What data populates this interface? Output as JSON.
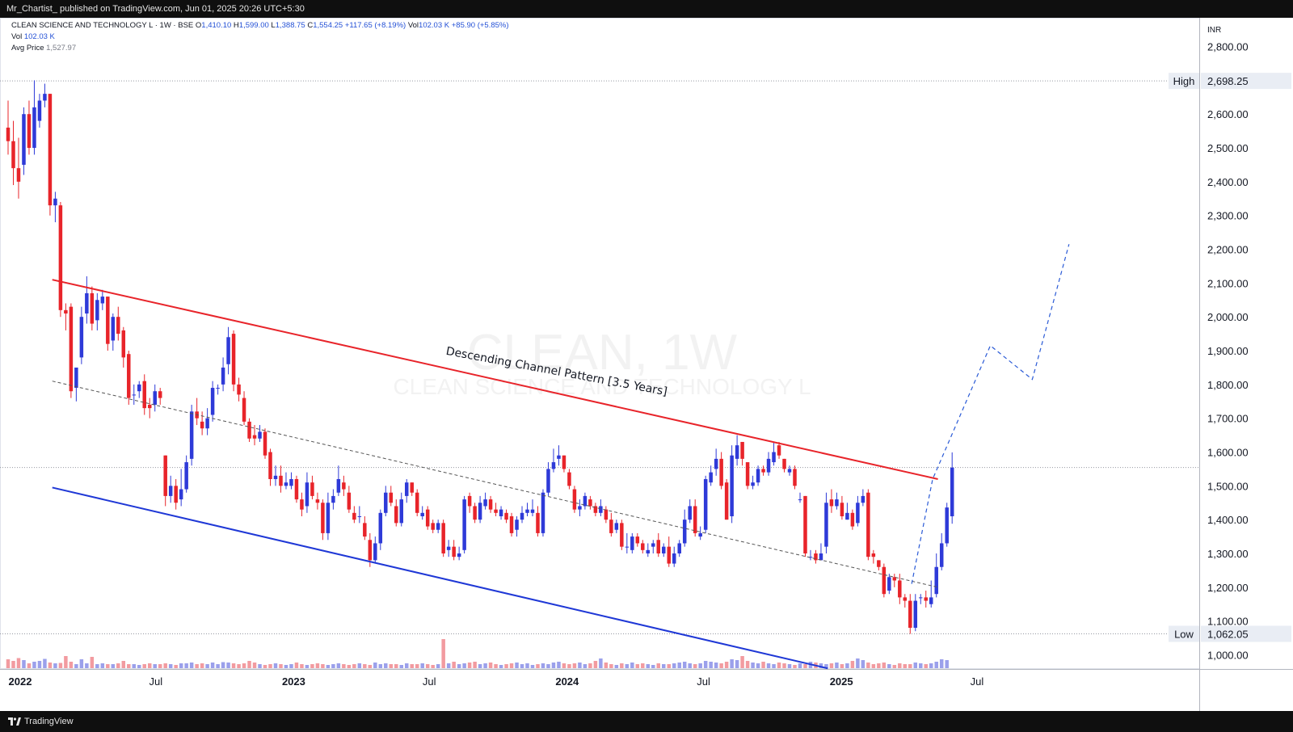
{
  "header": {
    "publish_text": "Mr_Chartist_ published on TradingView.com, Jun 01, 2025 20:26 UTC+5:30"
  },
  "legend": {
    "symbol": "CLEAN SCIENCE AND TECHNOLOGY L · 1W · BSE",
    "open_label": "O",
    "open": "1,410.10",
    "high_label": "H",
    "high": "1,599.00",
    "low_label": "L",
    "low": "1,388.75",
    "close_label": "C",
    "close": "1,554.25",
    "change": "+117.65 (+8.19%)",
    "vol_label": "Vol",
    "vol": "102.03 K",
    "vol_change": "+85.90 (+5.85%)",
    "vol_line_label": "Vol",
    "vol_line_value": "102.03 K",
    "avg_label": "Avg Price",
    "avg_value": "1,527.97"
  },
  "watermark": {
    "ticker": "CLEAN, 1W",
    "name": "CLEAN SCIENCE AND TECHNOLOGY L"
  },
  "annotation": {
    "channel_label": "Descending Channel Pattern [3.5 Years]"
  },
  "footer": {
    "brand": "TradingView"
  },
  "colors": {
    "up": "#2e3ad8",
    "down": "#e8242a",
    "upper_line": "#e8242a",
    "lower_line": "#1f38d6",
    "mid_line": "#555555",
    "projection": "#2a5ad6",
    "volume_up": "#8a8fe8",
    "volume_down": "#f08a8f"
  },
  "chart_data": {
    "type": "candlestick",
    "timeframe": "1W",
    "currency_label": "INR",
    "y_ticks": [
      "1,000.00",
      "1,100.00",
      "1,200.00",
      "1,300.00",
      "1,400.00",
      "1,500.00",
      "1,600.00",
      "1,700.00",
      "1,800.00",
      "1,900.00",
      "2,000.00",
      "2,100.00",
      "2,200.00",
      "2,300.00",
      "2,400.00",
      "2,500.00",
      "2,600.00",
      "2,700.00",
      "2,800.00"
    ],
    "x_ticks": [
      {
        "label": "2022",
        "date": "2022-01-01",
        "bold": true
      },
      {
        "label": "Jul",
        "date": "2022-07-01",
        "bold": false
      },
      {
        "label": "2023",
        "date": "2023-01-01",
        "bold": true
      },
      {
        "label": "Jul",
        "date": "2023-07-01",
        "bold": false
      },
      {
        "label": "2024",
        "date": "2024-01-01",
        "bold": true
      },
      {
        "label": "Jul",
        "date": "2024-07-01",
        "bold": false
      },
      {
        "label": "2025",
        "date": "2025-01-01",
        "bold": true
      },
      {
        "label": "Jul",
        "date": "2025-07-01",
        "bold": false
      }
    ],
    "price_markers": [
      {
        "label": "High",
        "value": 2698.25,
        "value_text": "2,698.25"
      },
      {
        "label": "Low",
        "value": 1062.05,
        "value_text": "1,062.05"
      }
    ],
    "last_price": 1554.25,
    "closes": [
      2520,
      2440,
      2400,
      2600,
      2500,
      2620,
      2640,
      2660,
      2330,
      2350,
      2020,
      2010,
      1780,
      1850,
      2000,
      2070,
      1980,
      2050,
      2060,
      1920,
      2000,
      1950,
      1880,
      1760,
      1770,
      1800,
      1730,
      1730,
      1780,
      1760,
      1470,
      1500,
      1450,
      1490,
      1570,
      1720,
      1700,
      1670,
      1700,
      1790,
      1790,
      1850,
      1940,
      1800,
      1770,
      1690,
      1640,
      1640,
      1660,
      1590,
      1520,
      1530,
      1500,
      1510,
      1520,
      1460,
      1430,
      1510,
      1470,
      1450,
      1360,
      1450,
      1470,
      1520,
      1490,
      1430,
      1400,
      1410,
      1350,
      1280,
      1330,
      1420,
      1480,
      1450,
      1390,
      1460,
      1510,
      1480,
      1420,
      1420,
      1380,
      1370,
      1390,
      1300,
      1320,
      1290,
      1300,
      1460,
      1440,
      1400,
      1450,
      1460,
      1430,
      1420,
      1430,
      1400,
      1360,
      1400,
      1420,
      1430,
      1430,
      1360,
      1480,
      1550,
      1570,
      1590,
      1550,
      1500,
      1430,
      1440,
      1470,
      1440,
      1420,
      1440,
      1400,
      1360,
      1390,
      1320,
      1320,
      1350,
      1330,
      1310,
      1310,
      1330,
      1300,
      1320,
      1270,
      1300,
      1330,
      1400,
      1440,
      1360,
      1360,
      1520,
      1540,
      1580,
      1500,
      1400,
      1590,
      1620,
      1580,
      1500,
      1510,
      1550,
      1540,
      1580,
      1600,
      1590,
      1550,
      1550,
      1500,
      1460,
      1300,
      1290,
      1280,
      1300,
      1450,
      1440,
      1460,
      1410,
      1420,
      1380,
      1450,
      1470,
      1290,
      1290,
      1260,
      1180,
      1230,
      1220,
      1170,
      1160,
      1080,
      1160,
      1170,
      1160,
      1170,
      1260,
      1330,
      1436,
      1554
    ],
    "opens": [
      2560,
      2520,
      2440,
      2450,
      2600,
      2500,
      2580,
      2640,
      2660,
      2330,
      2330,
      2020,
      2030,
      1790,
      1880,
      2010,
      2070,
      1990,
      2040,
      2060,
      1930,
      2000,
      1960,
      1890,
      1770,
      1780,
      1810,
      1740,
      1740,
      1780,
      1590,
      1470,
      1500,
      1460,
      1490,
      1580,
      1720,
      1690,
      1670,
      1710,
      1790,
      1800,
      1860,
      1950,
      1800,
      1760,
      1690,
      1650,
      1640,
      1660,
      1600,
      1520,
      1530,
      1500,
      1500,
      1520,
      1460,
      1440,
      1510,
      1460,
      1450,
      1360,
      1450,
      1480,
      1510,
      1480,
      1420,
      1410,
      1390,
      1340,
      1280,
      1330,
      1420,
      1480,
      1440,
      1390,
      1470,
      1510,
      1480,
      1410,
      1430,
      1390,
      1370,
      1390,
      1310,
      1320,
      1290,
      1310,
      1470,
      1440,
      1400,
      1440,
      1460,
      1430,
      1410,
      1420,
      1410,
      1370,
      1400,
      1420,
      1420,
      1420,
      1360,
      1480,
      1550,
      1580,
      1590,
      1540,
      1490,
      1430,
      1440,
      1460,
      1440,
      1420,
      1430,
      1400,
      1370,
      1390,
      1320,
      1310,
      1350,
      1330,
      1300,
      1320,
      1340,
      1300,
      1320,
      1270,
      1300,
      1330,
      1400,
      1440,
      1350,
      1370,
      1510,
      1550,
      1580,
      1510,
      1410,
      1580,
      1630,
      1570,
      1500,
      1510,
      1550,
      1540,
      1570,
      1620,
      1580,
      1540,
      1550,
      1460,
      1470,
      1290,
      1300,
      1280,
      1320,
      1460,
      1440,
      1450,
      1400,
      1420,
      1390,
      1450,
      1480,
      1300,
      1280,
      1260,
      1190,
      1230,
      1220,
      1170,
      1160,
      1080,
      1170,
      1170,
      1150,
      1180,
      1260,
      1330,
      1410
    ],
    "highs": [
      2640,
      2580,
      2530,
      2620,
      2640,
      2700,
      2660,
      2690,
      2660,
      2370,
      2340,
      2040,
      2040,
      1810,
      2030,
      2120,
      2090,
      2070,
      2080,
      2060,
      2010,
      2030,
      1970,
      1900,
      1800,
      1810,
      1830,
      1760,
      1800,
      1790,
      1590,
      1530,
      1520,
      1550,
      1590,
      1740,
      1760,
      1720,
      1730,
      1810,
      1800,
      1880,
      1970,
      1960,
      1820,
      1780,
      1700,
      1680,
      1680,
      1670,
      1610,
      1560,
      1560,
      1540,
      1540,
      1530,
      1480,
      1540,
      1530,
      1480,
      1460,
      1480,
      1490,
      1560,
      1530,
      1500,
      1440,
      1440,
      1410,
      1360,
      1350,
      1430,
      1500,
      1500,
      1460,
      1480,
      1520,
      1510,
      1490,
      1440,
      1440,
      1400,
      1400,
      1400,
      1340,
      1340,
      1320,
      1470,
      1480,
      1450,
      1470,
      1480,
      1470,
      1450,
      1440,
      1430,
      1420,
      1410,
      1440,
      1450,
      1460,
      1440,
      1490,
      1570,
      1610,
      1620,
      1590,
      1550,
      1500,
      1460,
      1480,
      1470,
      1450,
      1460,
      1440,
      1420,
      1400,
      1400,
      1360,
      1360,
      1360,
      1340,
      1330,
      1340,
      1360,
      1330,
      1350,
      1320,
      1340,
      1430,
      1460,
      1460,
      1380,
      1530,
      1560,
      1610,
      1600,
      1520,
      1620,
      1650,
      1620,
      1560,
      1530,
      1560,
      1560,
      1600,
      1630,
      1630,
      1580,
      1560,
      1560,
      1480,
      1470,
      1310,
      1310,
      1330,
      1480,
      1490,
      1480,
      1470,
      1450,
      1430,
      1470,
      1490,
      1490,
      1310,
      1280,
      1270,
      1240,
      1240,
      1240,
      1180,
      1180,
      1180,
      1180,
      1190,
      1220,
      1300,
      1360,
      1450,
      1599
    ],
    "lows": [
      2480,
      2390,
      2350,
      2420,
      2480,
      2480,
      2560,
      2620,
      2300,
      2280,
      2000,
      1960,
      1760,
      1750,
      1860,
      1980,
      1960,
      1960,
      2020,
      1900,
      1900,
      1930,
      1850,
      1740,
      1740,
      1760,
      1710,
      1700,
      1720,
      1740,
      1440,
      1450,
      1430,
      1440,
      1480,
      1560,
      1680,
      1650,
      1650,
      1690,
      1770,
      1780,
      1830,
      1780,
      1750,
      1680,
      1630,
      1620,
      1630,
      1580,
      1500,
      1500,
      1480,
      1490,
      1490,
      1450,
      1410,
      1420,
      1460,
      1430,
      1340,
      1340,
      1430,
      1470,
      1470,
      1420,
      1390,
      1390,
      1340,
      1260,
      1270,
      1310,
      1410,
      1440,
      1380,
      1380,
      1450,
      1470,
      1410,
      1400,
      1370,
      1360,
      1360,
      1290,
      1290,
      1280,
      1280,
      1300,
      1420,
      1390,
      1390,
      1430,
      1420,
      1410,
      1400,
      1390,
      1350,
      1350,
      1390,
      1410,
      1410,
      1350,
      1350,
      1470,
      1540,
      1560,
      1540,
      1490,
      1420,
      1410,
      1430,
      1430,
      1410,
      1410,
      1390,
      1350,
      1360,
      1310,
      1300,
      1300,
      1320,
      1300,
      1290,
      1300,
      1290,
      1290,
      1260,
      1260,
      1290,
      1320,
      1390,
      1350,
      1340,
      1360,
      1500,
      1530,
      1490,
      1400,
      1390,
      1560,
      1560,
      1490,
      1490,
      1500,
      1530,
      1530,
      1560,
      1580,
      1540,
      1530,
      1490,
      1450,
      1290,
      1280,
      1270,
      1280,
      1300,
      1420,
      1430,
      1400,
      1400,
      1370,
      1380,
      1440,
      1280,
      1270,
      1250,
      1170,
      1180,
      1200,
      1150,
      1140,
      1062,
      1070,
      1150,
      1140,
      1140,
      1170,
      1250,
      1320,
      1388
    ],
    "volumes": [
      22,
      18,
      25,
      20,
      12,
      16,
      18,
      23,
      14,
      12,
      13,
      30,
      16,
      10,
      22,
      12,
      28,
      10,
      12,
      10,
      10,
      12,
      18,
      10,
      10,
      8,
      10,
      12,
      10,
      10,
      12,
      10,
      8,
      12,
      12,
      14,
      10,
      12,
      10,
      14,
      10,
      15,
      14,
      12,
      10,
      12,
      18,
      14,
      10,
      8,
      10,
      12,
      10,
      8,
      10,
      14,
      10,
      8,
      10,
      12,
      10,
      8,
      10,
      12,
      10,
      8,
      10,
      12,
      10,
      8,
      14,
      10,
      12,
      10,
      10,
      8,
      12,
      10,
      10,
      12,
      10,
      8,
      10,
      72,
      12,
      16,
      10,
      12,
      14,
      16,
      10,
      12,
      14,
      10,
      8,
      10,
      12,
      14,
      10,
      12,
      8,
      10,
      12,
      10,
      14,
      16,
      12,
      10,
      12,
      14,
      10,
      12,
      18,
      24,
      14,
      10,
      8,
      12,
      10,
      14,
      10,
      12,
      10,
      8,
      12,
      10,
      10,
      12,
      14,
      16,
      12,
      10,
      12,
      18,
      16,
      14,
      12,
      16,
      22,
      20,
      30,
      18,
      14,
      12,
      16,
      12,
      10,
      14,
      12,
      10,
      8,
      12,
      10,
      16,
      14,
      12,
      10,
      12,
      14,
      10,
      12,
      18,
      24,
      20,
      14,
      10,
      12,
      14,
      10,
      8,
      12,
      10,
      10,
      14,
      12,
      10,
      12,
      16,
      22,
      20
    ]
  }
}
